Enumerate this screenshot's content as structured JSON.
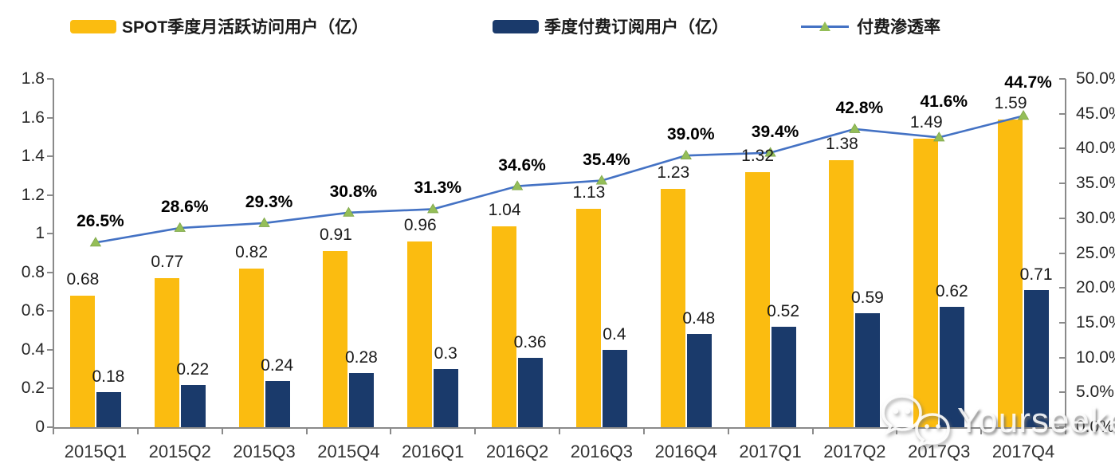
{
  "legend": [
    {
      "label": "SPOT季度月活跃访问用户（亿）",
      "color": "#FBBC10",
      "type": "bar"
    },
    {
      "label": "季度付费订阅用户（亿）",
      "color": "#1A3A6B",
      "type": "bar"
    },
    {
      "label": "付费渗透率",
      "color": "#4472C4",
      "marker_color": "#94BE58",
      "type": "line"
    }
  ],
  "watermark": {
    "icon": "wechat-icon",
    "text": "Yourseeker"
  },
  "chart_data": {
    "type": "bar",
    "subtype": "grouped bars with overlaid line (dual axis)",
    "categories": [
      "2015Q1",
      "2015Q2",
      "2015Q3",
      "2015Q4",
      "2016Q1",
      "2016Q2",
      "2016Q3",
      "2016Q4",
      "2017Q1",
      "2017Q2",
      "2017Q3",
      "2017Q4"
    ],
    "series": [
      {
        "name": "SPOT季度月活跃访问用户（亿）",
        "type": "bar",
        "axis": "left",
        "color": "#FBBC10",
        "values": [
          0.68,
          0.77,
          0.82,
          0.91,
          0.96,
          1.04,
          1.13,
          1.23,
          1.32,
          1.38,
          1.49,
          1.59
        ],
        "labels": [
          "0.68",
          "0.77",
          "0.82",
          "0.91",
          "0.96",
          "1.04",
          "1.13",
          "1.23",
          "1.32",
          "1.38",
          "1.49",
          "1.59"
        ]
      },
      {
        "name": "季度付费订阅用户（亿）",
        "type": "bar",
        "axis": "left",
        "color": "#1A3A6B",
        "values": [
          0.18,
          0.22,
          0.24,
          0.28,
          0.3,
          0.36,
          0.4,
          0.48,
          0.52,
          0.59,
          0.62,
          0.71
        ],
        "labels": [
          "0.18",
          "0.22",
          "0.24",
          "0.28",
          "0.3",
          "0.36",
          "0.4",
          "0.48",
          "0.52",
          "0.59",
          "0.62",
          "0.71"
        ]
      },
      {
        "name": "付费渗透率",
        "type": "line",
        "axis": "right",
        "color": "#4472C4",
        "marker": "triangle",
        "marker_color": "#94BE58",
        "values": [
          26.5,
          28.6,
          29.3,
          30.8,
          31.3,
          34.6,
          35.4,
          39.0,
          39.4,
          42.8,
          41.6,
          44.7
        ],
        "labels": [
          "26.5%",
          "28.6%",
          "29.3%",
          "30.8%",
          "31.3%",
          "34.6%",
          "35.4%",
          "39.0%",
          "39.4%",
          "42.8%",
          "41.6%",
          "44.7%"
        ]
      }
    ],
    "left_axis": {
      "min": 0,
      "max": 1.8,
      "step": 0.2,
      "ticks": [
        "0",
        "0.2",
        "0.4",
        "0.6",
        "0.8",
        "1",
        "1.2",
        "1.4",
        "1.6",
        "1.8"
      ]
    },
    "right_axis": {
      "min": 0,
      "max": 50,
      "step": 5,
      "ticks": [
        "0.0%",
        "5.0%",
        "10.0%",
        "15.0%",
        "20.0%",
        "25.0%",
        "30.0%",
        "35.0%",
        "40.0%",
        "45.0%",
        "50.0%"
      ]
    },
    "grid": false,
    "legend_position": "top",
    "title": ""
  }
}
